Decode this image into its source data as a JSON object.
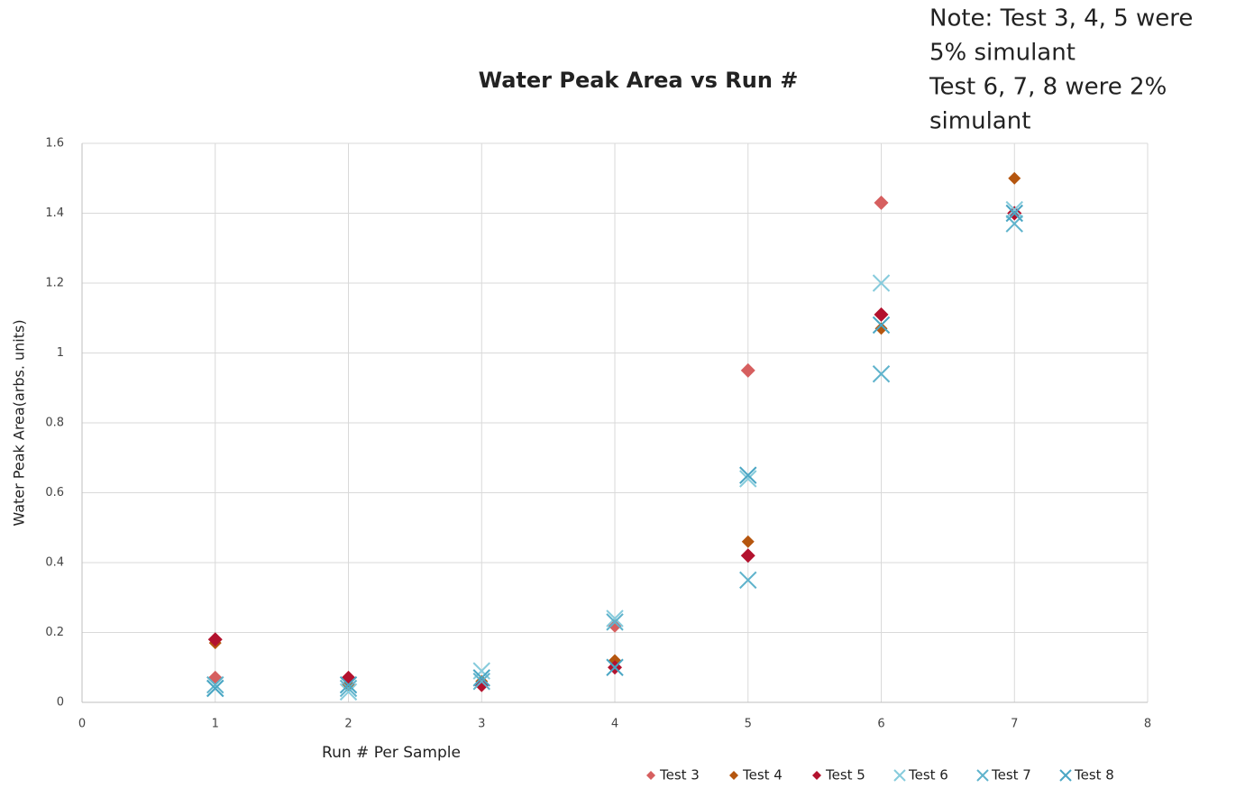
{
  "chart_data": {
    "type": "scatter",
    "title": "Water Peak Area vs Run #",
    "annotation": [
      "Note: Test 3, 4, 5 were",
      "5% simulant",
      "Test 6, 7, 8 were 2%",
      "simulant"
    ],
    "xlabel": "Run # Per Sample",
    "ylabel": "Water Peak Area(arbs. units)",
    "xlim": [
      0,
      8
    ],
    "xticks": [
      0,
      1,
      2,
      3,
      4,
      5,
      6,
      7,
      8
    ],
    "ylim": [
      0,
      1.6
    ],
    "yticks": [
      0,
      0.2,
      0.4,
      0.6,
      0.8,
      1,
      1.2,
      1.4,
      1.6
    ],
    "grid": true,
    "legend": "bottom",
    "x": [
      1,
      2,
      3,
      4,
      5,
      6,
      7
    ],
    "series": [
      {
        "name": "Test 3",
        "color": "#d65f5f",
        "marker": "diamond",
        "values": [
          0.07,
          0.05,
          0.05,
          0.22,
          0.95,
          1.43,
          1.4
        ]
      },
      {
        "name": "Test 4",
        "color": "#b5560f",
        "marker": "diamond",
        "values": [
          0.17,
          0.05,
          0.06,
          0.12,
          0.46,
          1.07,
          1.5
        ]
      },
      {
        "name": "Test 5",
        "color": "#b3122e",
        "marker": "diamond",
        "values": [
          0.18,
          0.07,
          0.05,
          0.1,
          0.42,
          1.11,
          1.4
        ]
      },
      {
        "name": "Test 6",
        "color": "#86cbdc",
        "marker": "x",
        "values": [
          0.04,
          0.03,
          0.09,
          0.24,
          0.64,
          1.2,
          1.41
        ]
      },
      {
        "name": "Test 7",
        "color": "#5fb3cc",
        "marker": "x",
        "values": [
          0.05,
          0.04,
          0.06,
          0.23,
          0.35,
          0.94,
          1.37
        ]
      },
      {
        "name": "Test 8",
        "color": "#4aa6c4",
        "marker": "x",
        "values": [
          0.04,
          0.05,
          0.07,
          0.1,
          0.65,
          1.08,
          1.4
        ]
      }
    ]
  }
}
